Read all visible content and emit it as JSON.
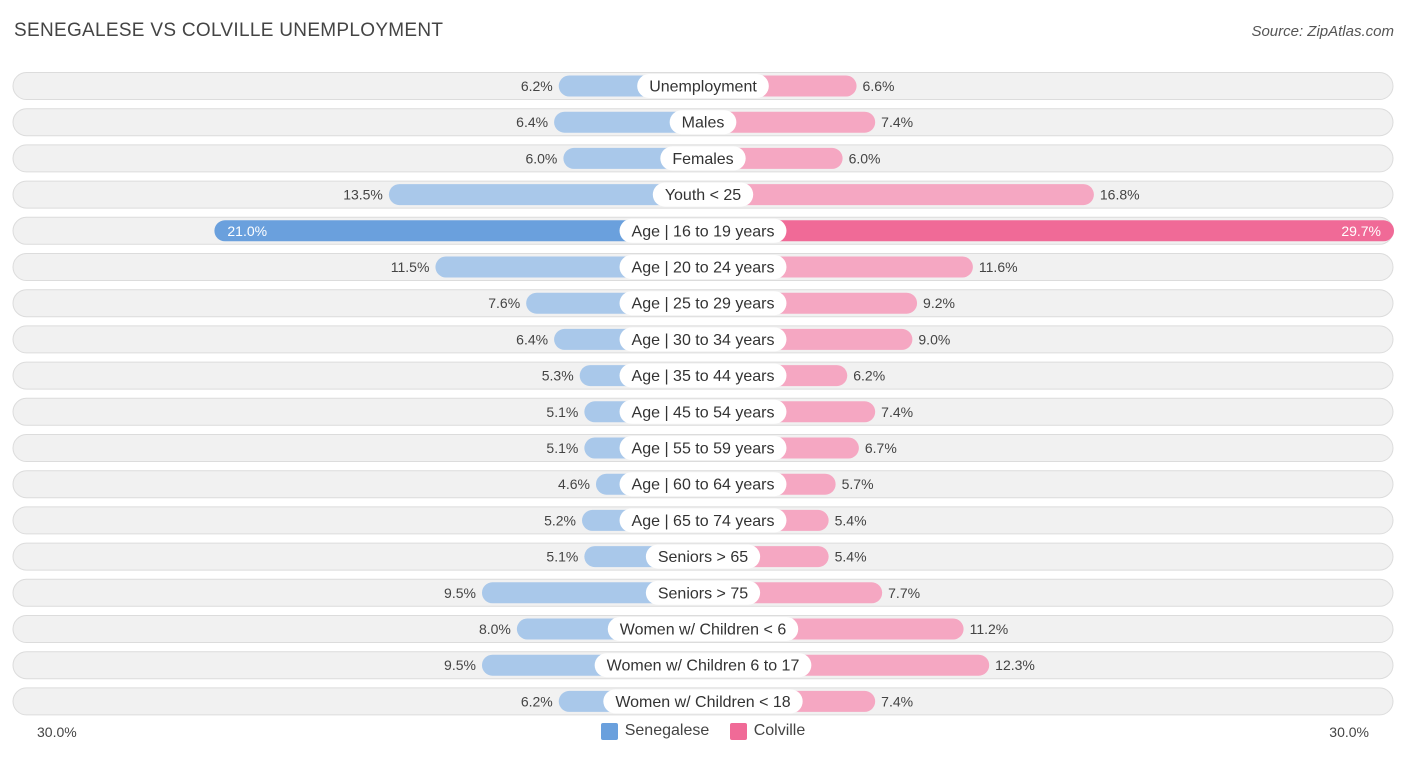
{
  "title": "Senegalese vs Colville Unemployment",
  "source": "Source: ZipAtlas.com",
  "colors": {
    "left": "#6aa0dd",
    "left_light": "#a9c8ea",
    "right": "#f06a97",
    "right_light": "#f5a7c2"
  },
  "chart_data": {
    "type": "bar",
    "orientation": "horizontal-diverging",
    "title": "Senegalese vs Colville Unemployment",
    "axis_max": 30.0,
    "axis_left_label": "30.0%",
    "axis_right_label": "30.0%",
    "legend": [
      "Senegalese",
      "Colville"
    ],
    "categories": [
      "Unemployment",
      "Males",
      "Females",
      "Youth < 25",
      "Age | 16 to 19 years",
      "Age | 20 to 24 years",
      "Age | 25 to 29 years",
      "Age | 30 to 34 years",
      "Age | 35 to 44 years",
      "Age | 45 to 54 years",
      "Age | 55 to 59 years",
      "Age | 60 to 64 years",
      "Age | 65 to 74 years",
      "Seniors > 65",
      "Seniors > 75",
      "Women w/ Children < 6",
      "Women w/ Children 6 to 17",
      "Women w/ Children < 18"
    ],
    "series": [
      {
        "name": "Senegalese",
        "values": [
          6.2,
          6.4,
          6.0,
          13.5,
          21.0,
          11.5,
          7.6,
          6.4,
          5.3,
          5.1,
          5.1,
          4.6,
          5.2,
          5.1,
          9.5,
          8.0,
          9.5,
          6.2
        ],
        "labels": [
          "6.2%",
          "6.4%",
          "6.0%",
          "13.5%",
          "21.0%",
          "11.5%",
          "7.6%",
          "6.4%",
          "5.3%",
          "5.1%",
          "5.1%",
          "4.6%",
          "5.2%",
          "5.1%",
          "9.5%",
          "8.0%",
          "9.5%",
          "6.2%"
        ]
      },
      {
        "name": "Colville",
        "values": [
          6.6,
          7.4,
          6.0,
          16.8,
          29.7,
          11.6,
          9.2,
          9.0,
          6.2,
          7.4,
          6.7,
          5.7,
          5.4,
          5.4,
          7.7,
          11.2,
          12.3,
          7.4
        ],
        "labels": [
          "6.6%",
          "7.4%",
          "6.0%",
          "16.8%",
          "29.7%",
          "11.6%",
          "9.2%",
          "9.0%",
          "6.2%",
          "7.4%",
          "6.7%",
          "5.7%",
          "5.4%",
          "5.4%",
          "7.7%",
          "11.2%",
          "12.3%",
          "7.4%"
        ]
      }
    ]
  }
}
